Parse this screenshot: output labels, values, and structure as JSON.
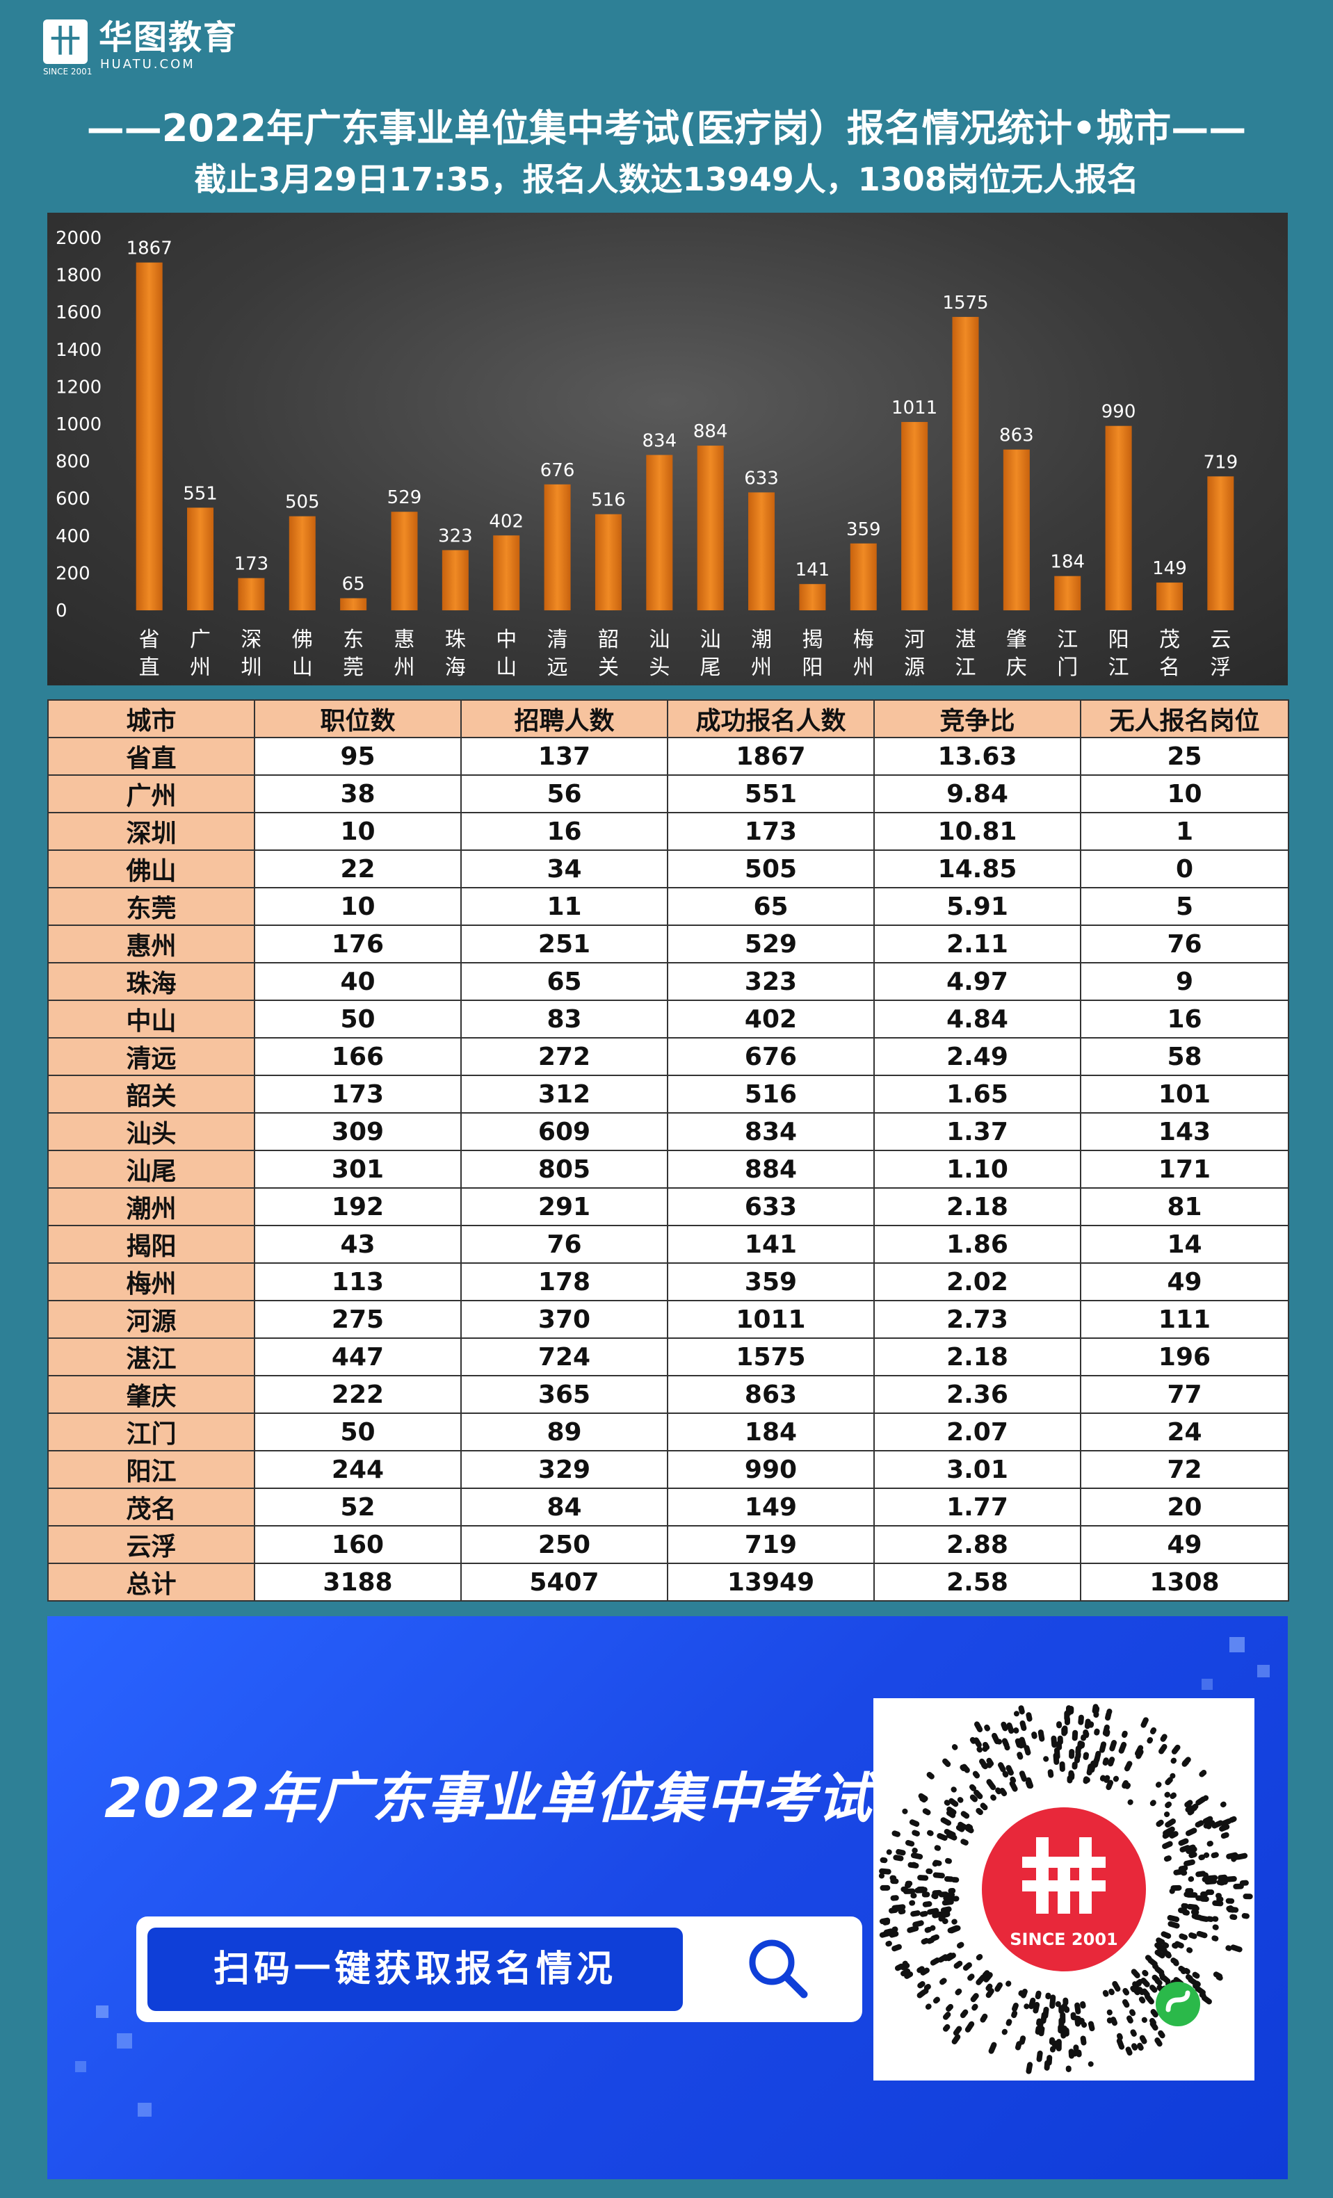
{
  "logo": {
    "name": "华图教育",
    "sub": "HUATU.COM",
    "since": "SINCE 2001"
  },
  "title": "——2022年广东事业单位集中考试(医疗岗）报名情况统计•城市——",
  "subtitle": "截止3月29日17:35，报名人数达13949人，1308岗位无人报名",
  "chart_data": {
    "type": "bar",
    "categories": [
      "省直",
      "广州",
      "深圳",
      "佛山",
      "东莞",
      "惠州",
      "珠海",
      "中山",
      "清远",
      "韶关",
      "汕头",
      "汕尾",
      "潮州",
      "揭阳",
      "梅州",
      "河源",
      "湛江",
      "肇庆",
      "江门",
      "阳江",
      "茂名",
      "云浮"
    ],
    "values": [
      1867,
      551,
      173,
      505,
      65,
      529,
      323,
      402,
      676,
      516,
      834,
      884,
      633,
      141,
      359,
      1011,
      1575,
      863,
      184,
      990,
      149,
      719
    ],
    "ylim": [
      0,
      2000
    ],
    "yticks": [
      0,
      200,
      400,
      600,
      800,
      1000,
      1200,
      1400,
      1600,
      1800,
      2000
    ],
    "grid": false,
    "bar_color": "#f08a24"
  },
  "table": {
    "headers": [
      "城市",
      "职位数",
      "招聘人数",
      "成功报名人数",
      "竞争比",
      "无人报名岗位"
    ],
    "rows": [
      [
        "省直",
        "95",
        "137",
        "1867",
        "13.63",
        "25"
      ],
      [
        "广州",
        "38",
        "56",
        "551",
        "9.84",
        "10"
      ],
      [
        "深圳",
        "10",
        "16",
        "173",
        "10.81",
        "1"
      ],
      [
        "佛山",
        "22",
        "34",
        "505",
        "14.85",
        "0"
      ],
      [
        "东莞",
        "10",
        "11",
        "65",
        "5.91",
        "5"
      ],
      [
        "惠州",
        "176",
        "251",
        "529",
        "2.11",
        "76"
      ],
      [
        "珠海",
        "40",
        "65",
        "323",
        "4.97",
        "9"
      ],
      [
        "中山",
        "50",
        "83",
        "402",
        "4.84",
        "16"
      ],
      [
        "清远",
        "166",
        "272",
        "676",
        "2.49",
        "58"
      ],
      [
        "韶关",
        "173",
        "312",
        "516",
        "1.65",
        "101"
      ],
      [
        "汕头",
        "309",
        "609",
        "834",
        "1.37",
        "143"
      ],
      [
        "汕尾",
        "301",
        "805",
        "884",
        "1.10",
        "171"
      ],
      [
        "潮州",
        "192",
        "291",
        "633",
        "2.18",
        "81"
      ],
      [
        "揭阳",
        "43",
        "76",
        "141",
        "1.86",
        "14"
      ],
      [
        "梅州",
        "113",
        "178",
        "359",
        "2.02",
        "49"
      ],
      [
        "河源",
        "275",
        "370",
        "1011",
        "2.73",
        "111"
      ],
      [
        "湛江",
        "447",
        "724",
        "1575",
        "2.18",
        "196"
      ],
      [
        "肇庆",
        "222",
        "365",
        "863",
        "2.36",
        "77"
      ],
      [
        "江门",
        "50",
        "89",
        "184",
        "2.07",
        "24"
      ],
      [
        "阳江",
        "244",
        "329",
        "990",
        "3.01",
        "72"
      ],
      [
        "茂名",
        "52",
        "84",
        "149",
        "1.77",
        "20"
      ],
      [
        "云浮",
        "160",
        "250",
        "719",
        "2.88",
        "49"
      ],
      [
        "总计",
        "3188",
        "5407",
        "13949",
        "2.58",
        "1308"
      ]
    ]
  },
  "banner": {
    "headline": "2022年广东事业单位集中考试",
    "search_label": "扫码一键获取报名情况",
    "qr_since": "SINCE 2001"
  },
  "colors": {
    "page_bg": "#2e8096",
    "header_fill": "#f7c39e",
    "banner_blue": "#1a48e6"
  }
}
